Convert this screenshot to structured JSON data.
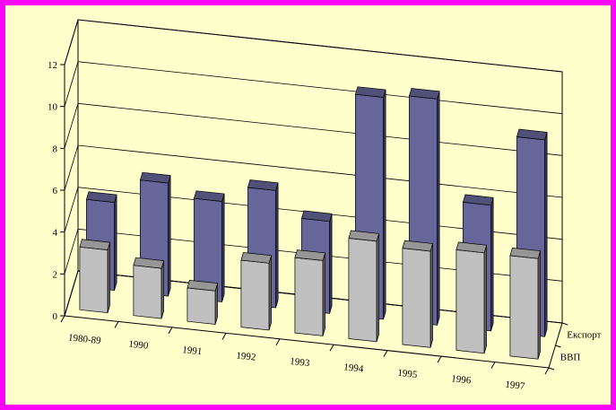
{
  "chart_data": {
    "type": "bar",
    "variant": "3d-clustered-depth",
    "categories": [
      "1980-89",
      "1990",
      "1991",
      "1992",
      "1993",
      "1994",
      "1995",
      "1996",
      "1997"
    ],
    "series": [
      {
        "name": "ВВП",
        "values": [
          3.0,
          2.4,
          1.6,
          3.2,
          3.6,
          4.8,
          4.6,
          4.8,
          4.8
        ],
        "color": "#c0c0c0"
      },
      {
        "name": "Експорт",
        "values": [
          4.2,
          5.4,
          4.8,
          5.6,
          4.4,
          10.6,
          10.8,
          6.0,
          9.4
        ],
        "color": "#66669a"
      }
    ],
    "yticks": [
      0,
      2,
      4,
      6,
      8,
      10,
      12
    ],
    "ylim": [
      0,
      12
    ],
    "grid": true,
    "legend": "depth-axis-right"
  },
  "colors": {
    "frame": "#ff00ff",
    "background": "#ffffcc"
  }
}
